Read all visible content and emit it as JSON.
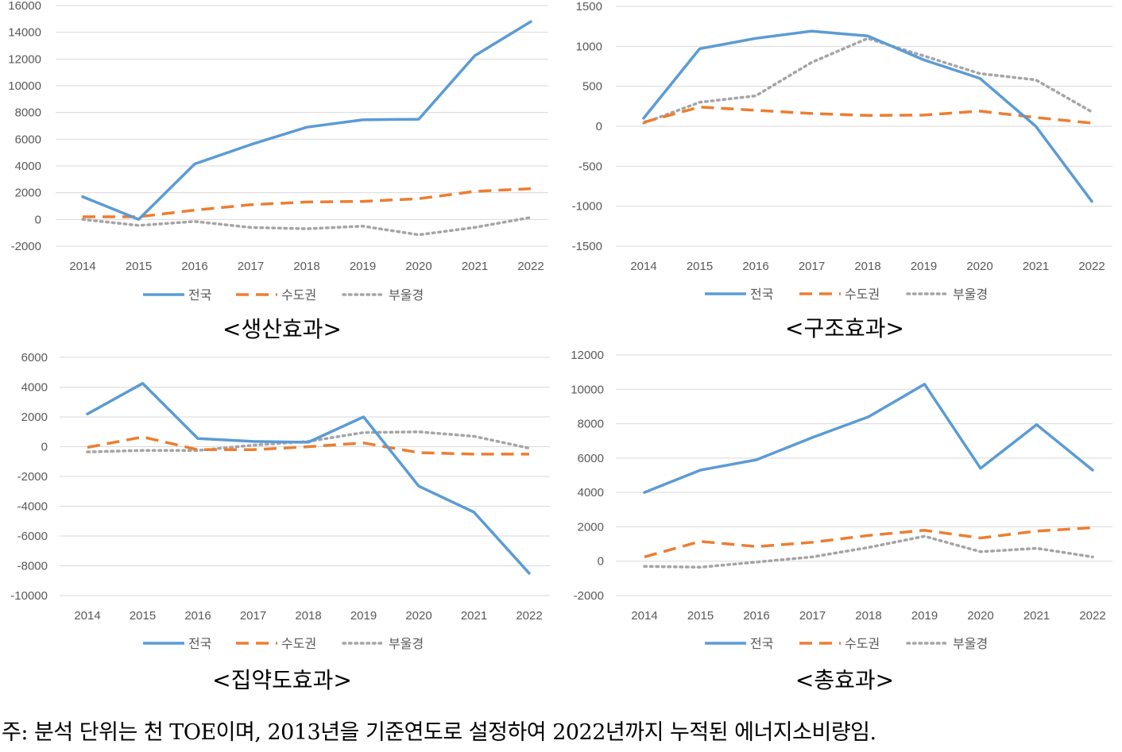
{
  "series_styles": [
    {
      "key": "nation",
      "color": "#5B9BD5",
      "dash": "",
      "width": 3.5
    },
    {
      "key": "capital",
      "color": "#ED7D31",
      "dash": "16 9",
      "width": 3.5
    },
    {
      "key": "bug",
      "color": "#A5A5A5",
      "dash": "2.5 5",
      "width": 3.5
    }
  ],
  "chart_data": [
    {
      "type": "line",
      "title": "<생산효과>",
      "x": [
        "2014",
        "2015",
        "2016",
        "2017",
        "2018",
        "2019",
        "2020",
        "2021",
        "2022"
      ],
      "yticks": [
        16000,
        14000,
        12000,
        10000,
        8000,
        6000,
        4000,
        2000,
        0,
        -2000
      ],
      "ylim": [
        -2000,
        16000
      ],
      "grid": true,
      "legend": "bottom",
      "series": [
        {
          "name": "전국",
          "values": [
            1700,
            0,
            4150,
            5600,
            6900,
            7450,
            7500,
            12250,
            14800
          ]
        },
        {
          "name": "수도권",
          "values": [
            200,
            200,
            700,
            1100,
            1300,
            1350,
            1550,
            2100,
            2300
          ]
        },
        {
          "name": "부울경",
          "values": [
            0,
            -450,
            -150,
            -600,
            -700,
            -500,
            -1150,
            -600,
            150
          ]
        }
      ]
    },
    {
      "type": "line",
      "title": "<구조효과>",
      "x": [
        "2014",
        "2015",
        "2016",
        "2017",
        "2018",
        "2019",
        "2020",
        "2021",
        "2022"
      ],
      "yticks": [
        1500,
        1000,
        500,
        0,
        -500,
        -1000,
        -1500
      ],
      "ylim": [
        -1500,
        1500
      ],
      "grid": true,
      "legend": "bottom",
      "series": [
        {
          "name": "전국",
          "values": [
            100,
            970,
            1100,
            1190,
            1130,
            830,
            600,
            0,
            -940
          ]
        },
        {
          "name": "수도권",
          "values": [
            50,
            240,
            200,
            160,
            135,
            140,
            190,
            110,
            40
          ]
        },
        {
          "name": "부울경",
          "values": [
            40,
            300,
            380,
            800,
            1100,
            880,
            660,
            580,
            180
          ]
        }
      ]
    },
    {
      "type": "line",
      "title": "<집약도효과>",
      "x": [
        "2014",
        "2015",
        "2016",
        "2017",
        "2018",
        "2019",
        "2020",
        "2021",
        "2022"
      ],
      "yticks": [
        6000,
        4000,
        2000,
        0,
        -2000,
        -4000,
        -6000,
        -8000,
        -10000
      ],
      "ylim": [
        -10000,
        6000
      ],
      "grid": true,
      "legend": "bottom",
      "series": [
        {
          "name": "전국",
          "values": [
            2200,
            4250,
            550,
            350,
            300,
            2000,
            -2650,
            -4400,
            -8500
          ]
        },
        {
          "name": "수도권",
          "values": [
            -50,
            650,
            -200,
            -200,
            0,
            250,
            -400,
            -500,
            -500
          ]
        },
        {
          "name": "부울경",
          "values": [
            -350,
            -250,
            -250,
            100,
            350,
            950,
            1000,
            700,
            -100
          ]
        }
      ]
    },
    {
      "type": "line",
      "title": "<총효과>",
      "x": [
        "2014",
        "2015",
        "2016",
        "2017",
        "2018",
        "2019",
        "2020",
        "2021",
        "2022"
      ],
      "yticks": [
        12000,
        10000,
        8000,
        6000,
        4000,
        2000,
        0,
        -2000
      ],
      "ylim": [
        -2000,
        12000
      ],
      "grid": true,
      "legend": "bottom",
      "series": [
        {
          "name": "전국",
          "values": [
            4000,
            5300,
            5900,
            7200,
            8400,
            10300,
            5400,
            7950,
            5300
          ]
        },
        {
          "name": "수도권",
          "values": [
            250,
            1150,
            850,
            1100,
            1500,
            1800,
            1350,
            1750,
            1950
          ]
        },
        {
          "name": "부울경",
          "values": [
            -300,
            -350,
            -50,
            250,
            800,
            1450,
            550,
            750,
            250
          ]
        }
      ]
    }
  ],
  "footnote": "주: 분석 단위는 천 TOE이며, 2013년을 기준연도로 설정하여 2022년까지 누적된 에너지소비량임."
}
